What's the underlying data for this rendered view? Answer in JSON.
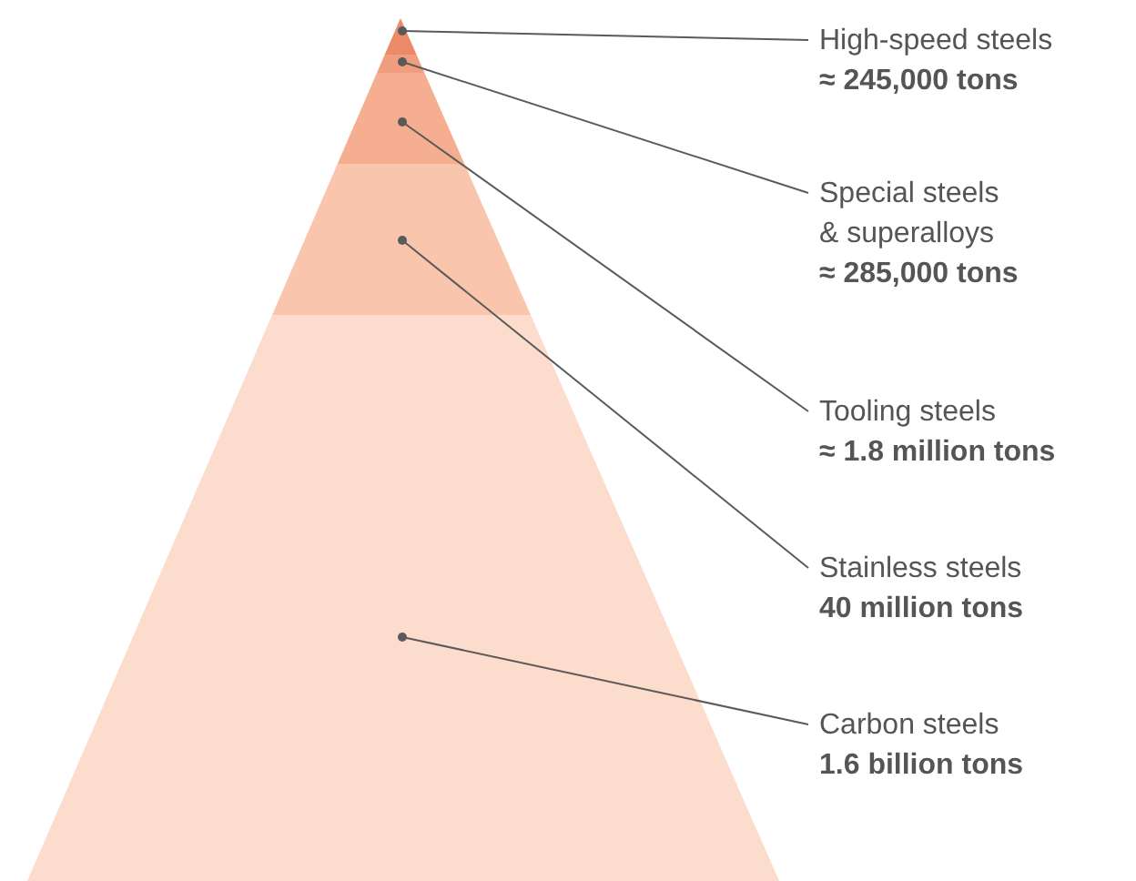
{
  "chart_data": {
    "type": "other",
    "categories": [
      "High-speed steels",
      "Special steels\n& superalloys",
      "Tooling steels",
      "Stainless steels",
      "Carbon steels"
    ],
    "values": [
      245000,
      285000,
      1800000,
      40000000,
      1600000000
    ],
    "value_labels": [
      "≈ 245,000 tons",
      "≈ 285,000 tons",
      "≈ 1.8 million tons",
      "40 million tons",
      "1.6 billion tons"
    ],
    "colors": [
      "#ec8a68",
      "#f19e80",
      "#f5ae90",
      "#f9c5ad",
      "#fcdccd"
    ]
  }
}
